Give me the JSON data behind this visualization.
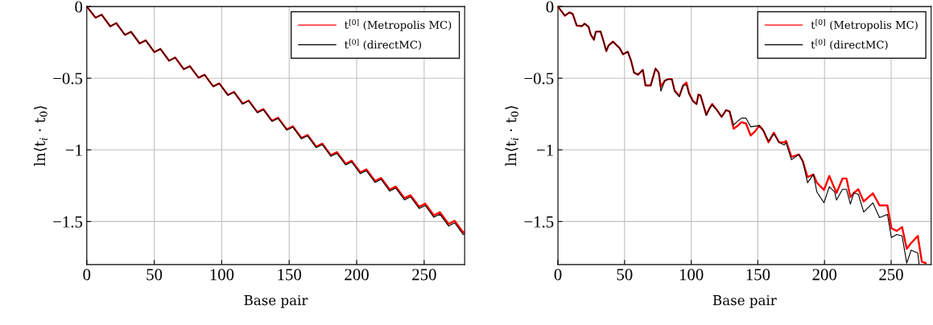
{
  "chart_data": [
    {
      "type": "line",
      "xlabel": "Base pair",
      "ylabel": "ln⟨t$_{i}$ · t$_{0}$⟩",
      "xlim": [
        0,
        280
      ],
      "ylim": [
        -1.8,
        0
      ],
      "xticks": [
        0,
        50,
        100,
        150,
        200,
        250
      ],
      "yticks": [
        {
          "value": 0,
          "label": "0"
        },
        {
          "value": -0.5,
          "label": "−0.5"
        },
        {
          "value": -1,
          "label": "−1"
        },
        {
          "value": -1.5,
          "label": "−1.5"
        }
      ],
      "grid": true,
      "legend": "top right",
      "marker": "none",
      "line_style": "solid",
      "x": [
        0,
        6.5,
        11,
        17.4,
        21.9,
        28.3,
        32.8,
        39.2,
        43.7,
        50.1,
        54.6,
        61,
        65.5,
        71.9,
        76.4,
        82.8,
        87.3,
        93.7,
        98.2,
        104.6,
        109.1,
        115.5,
        120,
        126.4,
        130.9,
        137.3,
        141.8,
        148.2,
        152.7,
        159.1,
        163.6,
        170,
        174.5,
        180.9,
        185.4,
        191.8,
        196.3,
        202.7,
        207.2,
        213.6,
        218.1,
        224.5,
        229,
        235.4,
        239.9,
        246.3,
        250.8,
        257.2,
        261.7,
        268.1,
        272.6,
        279,
        280
      ],
      "series": [
        {
          "name": "t$^{[0]}$ (Metropolis MC)",
          "color": "#ff0000",
          "values": [
            0,
            -0.078,
            -0.057,
            -0.138,
            -0.116,
            -0.198,
            -0.176,
            -0.258,
            -0.236,
            -0.318,
            -0.296,
            -0.378,
            -0.356,
            -0.437,
            -0.416,
            -0.497,
            -0.476,
            -0.557,
            -0.536,
            -0.617,
            -0.596,
            -0.677,
            -0.656,
            -0.737,
            -0.716,
            -0.797,
            -0.776,
            -0.857,
            -0.836,
            -0.917,
            -0.896,
            -0.977,
            -0.956,
            -1.037,
            -1.016,
            -1.097,
            -1.076,
            -1.157,
            -1.136,
            -1.217,
            -1.196,
            -1.277,
            -1.256,
            -1.337,
            -1.316,
            -1.397,
            -1.375,
            -1.457,
            -1.435,
            -1.517,
            -1.495,
            -1.577,
            -1.57
          ]
        },
        {
          "name": "t$^{[0]}$ (directMC)",
          "color": "#000000",
          "values": [
            0,
            -0.078,
            -0.057,
            -0.138,
            -0.116,
            -0.198,
            -0.176,
            -0.258,
            -0.236,
            -0.318,
            -0.296,
            -0.378,
            -0.356,
            -0.437,
            -0.416,
            -0.497,
            -0.477,
            -0.558,
            -0.537,
            -0.619,
            -0.598,
            -0.68,
            -0.659,
            -0.74,
            -0.72,
            -0.801,
            -0.781,
            -0.862,
            -0.841,
            -0.923,
            -0.902,
            -0.984,
            -0.963,
            -1.045,
            -1.024,
            -1.105,
            -1.085,
            -1.166,
            -1.146,
            -1.227,
            -1.206,
            -1.288,
            -1.267,
            -1.349,
            -1.328,
            -1.409,
            -1.388,
            -1.47,
            -1.449,
            -1.531,
            -1.509,
            -1.591,
            -1.585
          ]
        }
      ]
    },
    {
      "type": "line",
      "xlabel": "Base pair",
      "ylabel": "ln⟨t$_{i}$ · t$_{0}$⟩",
      "xlim": [
        0,
        280
      ],
      "ylim": [
        -1.8,
        0
      ],
      "xticks": [
        0,
        50,
        100,
        150,
        200,
        250
      ],
      "yticks": [
        {
          "value": 0,
          "label": "0"
        },
        {
          "value": -0.5,
          "label": "−0.5"
        },
        {
          "value": -1,
          "label": "−1"
        },
        {
          "value": -1.5,
          "label": "−1.5"
        }
      ],
      "grid": true,
      "legend": "top right",
      "marker": "none",
      "line_style": "solid",
      "series": [
        {
          "name": "t$^{[0]}$ (Metropolis MC)",
          "color": "#ff0000",
          "x": [
            0,
            5.2,
            8.7,
            11.1,
            14.1,
            18,
            20,
            23,
            24.6,
            27,
            28.4,
            32,
            34.3,
            36.3,
            37.9,
            41.3,
            46.4,
            48.8,
            52.4,
            54.8,
            57.1,
            60.1,
            63.7,
            65.7,
            69.6,
            71.2,
            73.2,
            75.6,
            77.2,
            80.2,
            82.6,
            85.5,
            87.5,
            91.1,
            93.9,
            96.4,
            98.4,
            101.4,
            104,
            105.4,
            107,
            111.3,
            113.7,
            115.7,
            119.2,
            122.8,
            126.2,
            128.8,
            131.8,
            135.1,
            137.7,
            141.1,
            144.6,
            148,
            151,
            154,
            158,
            162,
            165.9,
            169.8,
            171.2,
            175.2,
            180.8,
            183.7,
            187.3,
            191.7,
            194.3,
            199.6,
            203.6,
            207.6,
            209,
            213.5,
            216.5,
            219.4,
            222,
            225.4,
            229.4,
            236.3,
            241.3,
            247.2,
            250.2,
            254.2,
            258.2,
            261.7,
            265,
            270,
            273,
            276
          ],
          "values": [
            0,
            -0.064,
            -0.041,
            -0.052,
            -0.133,
            -0.137,
            -0.12,
            -0.142,
            -0.195,
            -0.232,
            -0.176,
            -0.174,
            -0.245,
            -0.311,
            -0.273,
            -0.245,
            -0.292,
            -0.333,
            -0.315,
            -0.376,
            -0.461,
            -0.476,
            -0.442,
            -0.551,
            -0.551,
            -0.498,
            -0.433,
            -0.461,
            -0.56,
            -0.517,
            -0.507,
            -0.507,
            -0.585,
            -0.625,
            -0.551,
            -0.53,
            -0.605,
            -0.66,
            -0.68,
            -0.614,
            -0.62,
            -0.755,
            -0.71,
            -0.68,
            -0.72,
            -0.77,
            -0.723,
            -0.732,
            -0.853,
            -0.83,
            -0.807,
            -0.816,
            -0.9,
            -0.87,
            -0.831,
            -0.863,
            -0.948,
            -0.88,
            -0.948,
            -0.948,
            -0.938,
            -1.05,
            -1.032,
            -1.079,
            -1.19,
            -1.172,
            -1.229,
            -1.28,
            -1.182,
            -1.27,
            -1.3,
            -1.2,
            -1.2,
            -1.33,
            -1.3,
            -1.275,
            -1.36,
            -1.303,
            -1.388,
            -1.388,
            -1.547,
            -1.566,
            -1.538,
            -1.69,
            -1.65,
            -1.6,
            -1.78,
            -1.79
          ]
        },
        {
          "name": "t$^{[0]}$ (directMC)",
          "color": "#000000",
          "x": [
            0,
            5.2,
            8.7,
            11.1,
            14.1,
            18,
            20,
            23,
            24.6,
            27,
            28.4,
            32,
            34.3,
            36.3,
            37.9,
            41.3,
            46.4,
            48.8,
            52.4,
            54.8,
            57.1,
            60.1,
            63.7,
            65.7,
            69.6,
            71.2,
            73.2,
            75.6,
            77.2,
            80.2,
            82.6,
            85.5,
            87.5,
            91.1,
            93.9,
            96.4,
            98.4,
            101.4,
            104,
            105.4,
            107,
            111.3,
            113.7,
            115.7,
            119.2,
            122.8,
            126.2,
            128.8,
            131.8,
            135.1,
            137.7,
            141.1,
            144.6,
            148,
            151,
            154,
            158,
            162,
            165.9,
            169.8,
            171.2,
            175.2,
            180.8,
            183.7,
            187.3,
            191.7,
            194.3,
            199.6,
            203.6,
            207.6,
            209,
            213.5,
            216.5,
            219.4,
            222,
            225.4,
            229.4,
            236.3,
            241.3,
            247.2,
            250.2,
            254.2,
            258.2,
            261.7,
            265,
            270,
            271
          ],
          "values": [
            0,
            -0.064,
            -0.041,
            -0.052,
            -0.133,
            -0.137,
            -0.12,
            -0.142,
            -0.195,
            -0.232,
            -0.176,
            -0.174,
            -0.245,
            -0.311,
            -0.273,
            -0.245,
            -0.292,
            -0.333,
            -0.315,
            -0.376,
            -0.461,
            -0.476,
            -0.442,
            -0.551,
            -0.551,
            -0.498,
            -0.433,
            -0.461,
            -0.59,
            -0.517,
            -0.507,
            -0.507,
            -0.592,
            -0.629,
            -0.551,
            -0.547,
            -0.611,
            -0.663,
            -0.682,
            -0.614,
            -0.62,
            -0.76,
            -0.713,
            -0.685,
            -0.723,
            -0.77,
            -0.723,
            -0.732,
            -0.826,
            -0.798,
            -0.779,
            -0.779,
            -0.839,
            -0.835,
            -0.831,
            -0.863,
            -0.938,
            -0.888,
            -0.948,
            -0.966,
            -0.95,
            -1.069,
            -1.032,
            -1.079,
            -1.229,
            -1.172,
            -1.294,
            -1.369,
            -1.257,
            -1.294,
            -1.35,
            -1.275,
            -1.275,
            -1.378,
            -1.3,
            -1.31,
            -1.434,
            -1.37,
            -1.472,
            -1.45,
            -1.612,
            -1.59,
            -1.6,
            -1.79,
            -1.7,
            -1.72,
            -1.8
          ]
        }
      ]
    }
  ]
}
